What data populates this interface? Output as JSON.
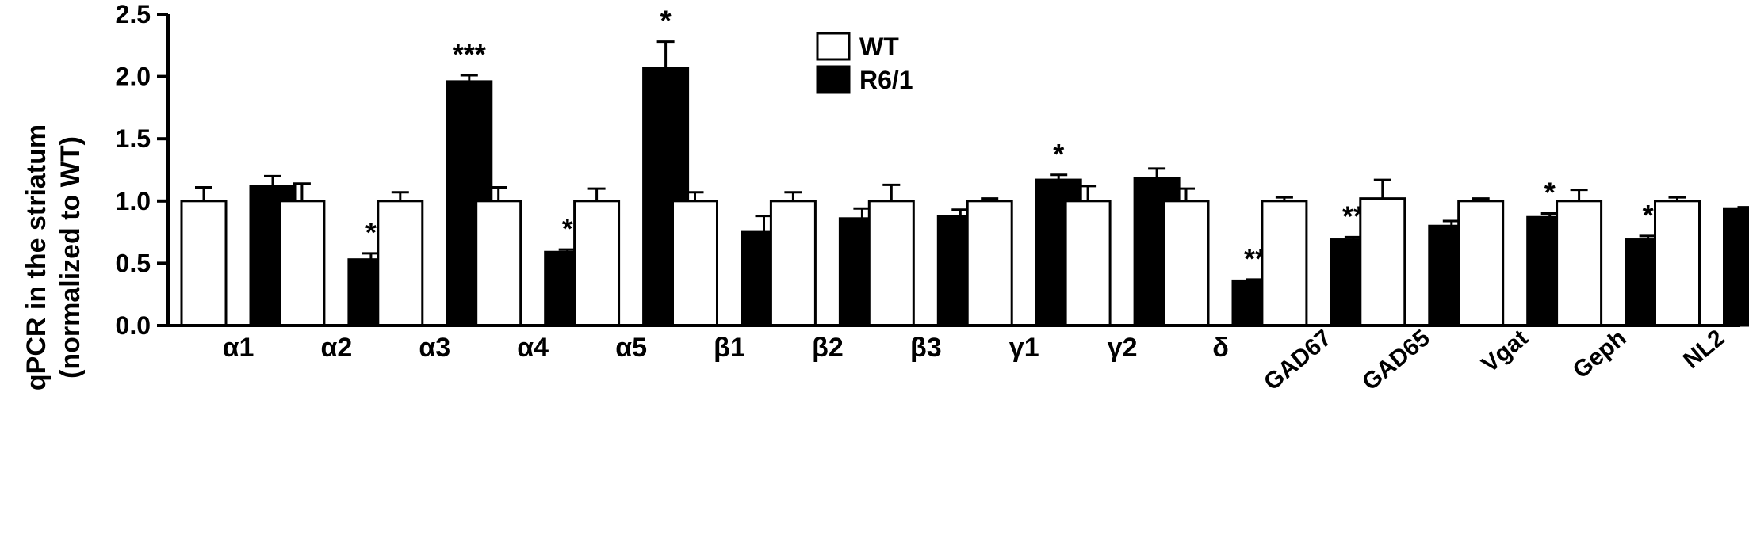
{
  "chart_data": {
    "type": "bar",
    "ylabel_line1": "qPCR in the striatum",
    "ylabel_line2": "(normalized to WT)",
    "xlabel": "",
    "ylim": [
      0,
      2.5
    ],
    "yticks": [
      "0.0",
      "0.5",
      "1.0",
      "1.5",
      "2.0",
      "2.5"
    ],
    "categories": [
      "α1",
      "α2",
      "α3",
      "α4",
      "α5",
      "β1",
      "β2",
      "β3",
      "γ1",
      "γ2",
      "δ",
      "GAD67",
      "GAD65",
      "Vgat",
      "Geph",
      "NL2"
    ],
    "series": [
      {
        "name": "WT",
        "color": "#ffffff",
        "values": [
          1.0,
          1.0,
          1.0,
          1.0,
          1.0,
          1.0,
          1.0,
          1.0,
          1.0,
          1.0,
          1.0,
          1.0,
          1.02,
          1.0,
          1.0,
          1.0
        ],
        "errors": [
          0.11,
          0.14,
          0.07,
          0.11,
          0.1,
          0.07,
          0.07,
          0.13,
          0.02,
          0.12,
          0.1,
          0.03,
          0.15,
          0.02,
          0.09,
          0.03
        ],
        "significance": [
          "",
          "",
          "",
          "",
          "",
          "",
          "",
          "",
          "",
          "",
          "",
          "",
          "",
          "",
          "",
          ""
        ]
      },
      {
        "name": "R6/1",
        "color": "#000000",
        "values": [
          1.12,
          0.53,
          1.96,
          0.59,
          2.07,
          0.75,
          0.86,
          0.88,
          1.17,
          1.18,
          0.36,
          0.69,
          0.8,
          0.87,
          0.69,
          0.94
        ],
        "errors": [
          0.08,
          0.05,
          0.05,
          0.02,
          0.21,
          0.13,
          0.08,
          0.05,
          0.04,
          0.08,
          0.01,
          0.02,
          0.04,
          0.03,
          0.03,
          0.01
        ],
        "significance": [
          "",
          "*",
          "***",
          "*",
          "*",
          "",
          "",
          "",
          "*",
          "",
          "**",
          "**",
          "",
          "*",
          "*",
          ""
        ]
      }
    ],
    "legend_position": "top-center",
    "grid": false
  }
}
